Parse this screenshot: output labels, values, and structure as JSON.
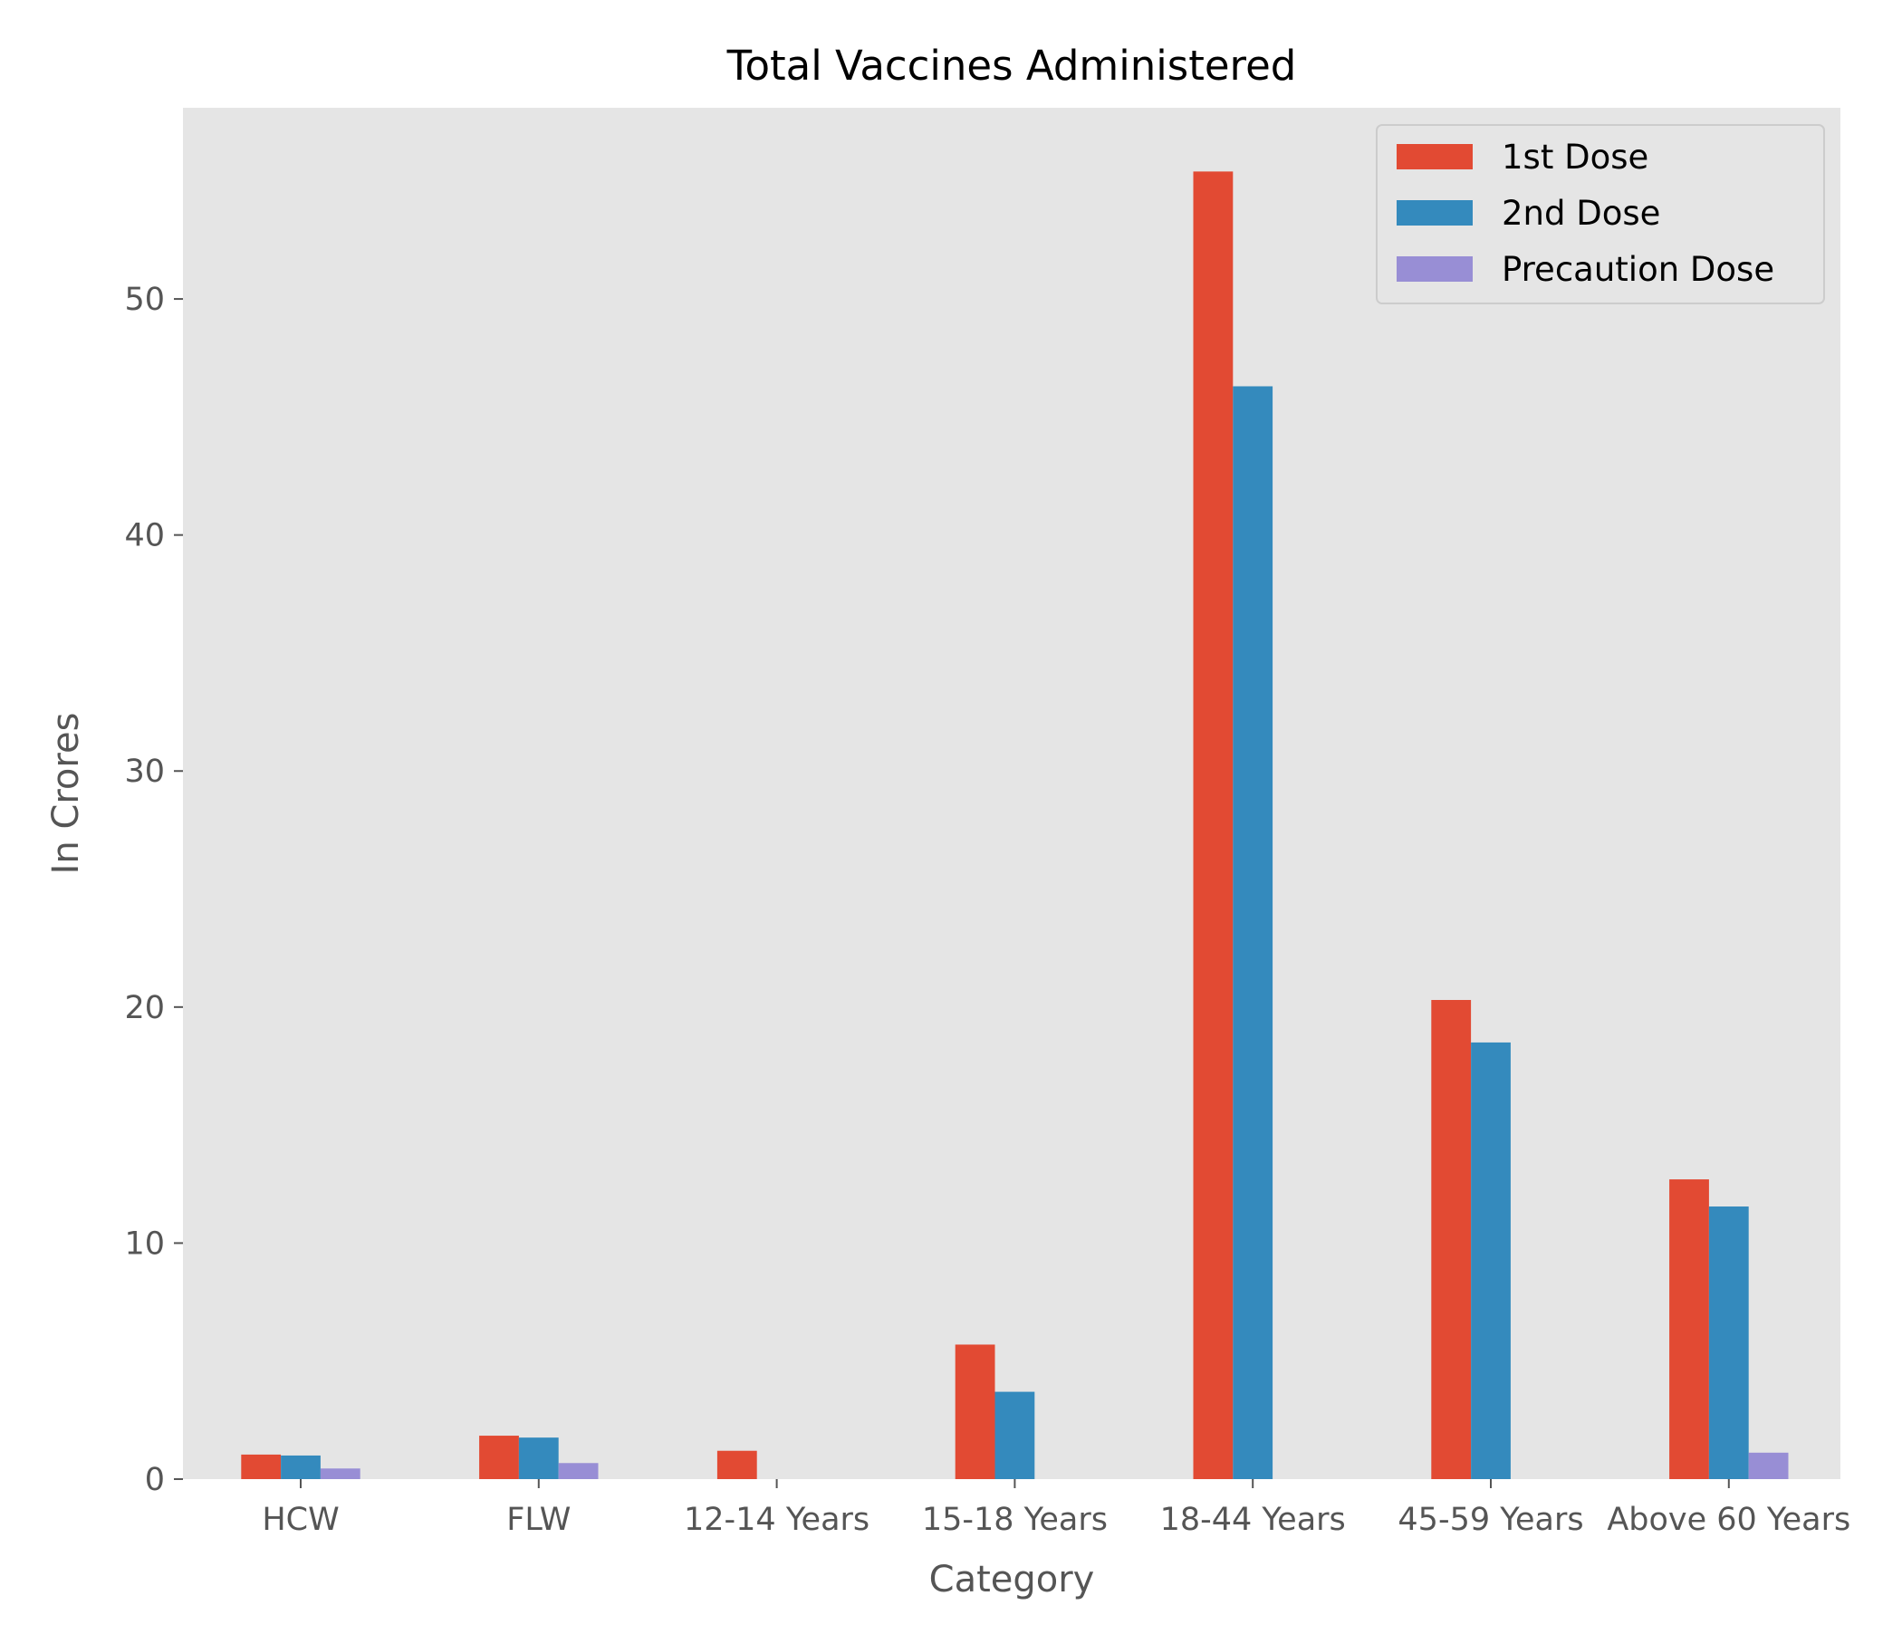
{
  "chart_data": {
    "type": "bar",
    "title": "Total Vaccines Administered",
    "xlabel": "Category",
    "ylabel": "In Crores",
    "categories": [
      "HCW",
      "FLW",
      "12-14 Years",
      "15-18 Years",
      "18-44 Years",
      "45-59 Years",
      "Above 60 Years"
    ],
    "series": [
      {
        "name": "1st Dose",
        "color": "#E24A33",
        "values": [
          1.04,
          1.84,
          1.2,
          5.7,
          55.4,
          20.3,
          12.7
        ]
      },
      {
        "name": "2nd Dose",
        "color": "#348ABD",
        "values": [
          1.0,
          1.76,
          0.0,
          3.7,
          46.3,
          18.5,
          11.55
        ]
      },
      {
        "name": "Precaution Dose",
        "color": "#988ED5",
        "values": [
          0.45,
          0.68,
          0.0,
          0.0,
          0.0,
          0.0,
          1.12
        ]
      }
    ],
    "ylim": [
      0,
      58.1
    ],
    "yticks": [
      0,
      10,
      20,
      30,
      40,
      50
    ],
    "grid": false,
    "legend_position": "top-right",
    "plot_background": "#E5E5E5"
  }
}
